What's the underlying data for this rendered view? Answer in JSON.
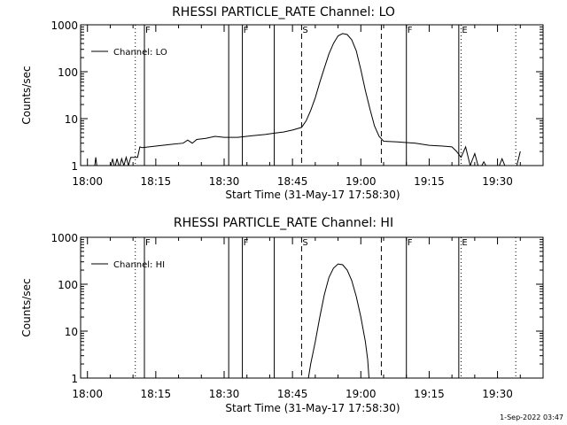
{
  "chart_data": [
    {
      "type": "line",
      "title": "RHESSI PARTICLE_RATE Channel: LO",
      "xlabel": "Start Time (31-May-17 17:58:30)",
      "ylabel": "Counts/sec",
      "yscale": "log",
      "ylim": [
        1,
        1000
      ],
      "xlim": [
        "17:58:30",
        "19:40:00"
      ],
      "x_ticks": [
        "18:00",
        "18:15",
        "18:30",
        "18:45",
        "19:00",
        "19:15",
        "19:30"
      ],
      "y_ticks": [
        "1",
        "10",
        "100",
        "1000"
      ],
      "grid": false,
      "legend_position": "top-left",
      "series": [
        {
          "name": "Channel: LO",
          "points": [
            [
              "18:00:00",
              0.8
            ],
            [
              "18:01:30",
              0.8
            ],
            [
              "18:01:50",
              1.5
            ],
            [
              "18:02:10",
              0.8
            ],
            [
              "18:05:00",
              0.8
            ],
            [
              "18:05:30",
              1.4
            ],
            [
              "18:06:00",
              0.9
            ],
            [
              "18:06:30",
              1.4
            ],
            [
              "18:07:00",
              0.9
            ],
            [
              "18:07:30",
              1.4
            ],
            [
              "18:08:00",
              1.0
            ],
            [
              "18:08:30",
              1.5
            ],
            [
              "18:09:00",
              1.0
            ],
            [
              "18:09:30",
              1.5
            ],
            [
              "18:10:00",
              1.5
            ],
            [
              "18:11:00",
              1.5
            ],
            [
              "18:11:30",
              2.5
            ],
            [
              "18:12:00",
              2.4
            ],
            [
              "18:15:00",
              2.6
            ],
            [
              "18:18:00",
              2.8
            ],
            [
              "18:21:00",
              3.0
            ],
            [
              "18:22:00",
              3.5
            ],
            [
              "18:23:00",
              3.0
            ],
            [
              "18:24:00",
              3.6
            ],
            [
              "18:26:00",
              3.8
            ],
            [
              "18:28:00",
              4.2
            ],
            [
              "18:30:00",
              4.0
            ],
            [
              "18:33:00",
              4.0
            ],
            [
              "18:36:00",
              4.3
            ],
            [
              "18:39:00",
              4.6
            ],
            [
              "18:41:00",
              4.9
            ],
            [
              "18:43:00",
              5.2
            ],
            [
              "18:45:00",
              5.7
            ],
            [
              "18:47:00",
              6.5
            ],
            [
              "18:48:00",
              9.0
            ],
            [
              "18:49:00",
              15
            ],
            [
              "18:50:00",
              28
            ],
            [
              "18:51:00",
              60
            ],
            [
              "18:52:00",
              120
            ],
            [
              "18:53:00",
              240
            ],
            [
              "18:54:00",
              400
            ],
            [
              "18:55:00",
              580
            ],
            [
              "18:56:00",
              650
            ],
            [
              "18:57:00",
              620
            ],
            [
              "18:58:00",
              480
            ],
            [
              "18:59:00",
              280
            ],
            [
              "19:00:00",
              110
            ],
            [
              "19:01:00",
              40
            ],
            [
              "19:02:00",
              16
            ],
            [
              "19:03:00",
              7
            ],
            [
              "19:04:00",
              4.2
            ],
            [
              "19:05:00",
              3.3
            ],
            [
              "19:08:00",
              3.2
            ],
            [
              "19:12:00",
              3.0
            ],
            [
              "19:15:00",
              2.7
            ],
            [
              "19:18:00",
              2.6
            ],
            [
              "19:20:00",
              2.5
            ],
            [
              "19:21:00",
              2.0
            ],
            [
              "19:22:00",
              1.5
            ],
            [
              "19:23:00",
              2.5
            ],
            [
              "19:24:00",
              1.0
            ],
            [
              "19:25:00",
              1.8
            ],
            [
              "19:26:00",
              0.8
            ],
            [
              "19:27:00",
              1.2
            ],
            [
              "19:28:00",
              0.8
            ],
            [
              "19:30:00",
              0.8
            ],
            [
              "19:31:00",
              1.4
            ],
            [
              "19:32:00",
              0.8
            ],
            [
              "19:34:00",
              0.8
            ],
            [
              "19:35:00",
              2.0
            ]
          ]
        }
      ],
      "vlines": [
        {
          "x": "18:10:30",
          "style": "dotted",
          "label": ""
        },
        {
          "x": "18:12:30",
          "style": "solid",
          "label": "F"
        },
        {
          "x": "18:31:00",
          "style": "solid",
          "label": ""
        },
        {
          "x": "18:34:00",
          "style": "solid",
          "label": "F"
        },
        {
          "x": "18:41:00",
          "style": "solid",
          "label": ""
        },
        {
          "x": "18:47:00",
          "style": "dashed",
          "label": "S"
        },
        {
          "x": "19:04:30",
          "style": "dashed",
          "label": ""
        },
        {
          "x": "19:10:00",
          "style": "solid",
          "label": "F"
        },
        {
          "x": "19:21:30",
          "style": "solid",
          "label": ""
        },
        {
          "x": "19:22:00",
          "style": "dotted",
          "label": "E"
        },
        {
          "x": "19:34:00",
          "style": "dotted",
          "label": ""
        }
      ]
    },
    {
      "type": "line",
      "title": "RHESSI PARTICLE_RATE Channel: HI",
      "xlabel": "Start Time (31-May-17 17:58:30)",
      "ylabel": "Counts/sec",
      "yscale": "log",
      "ylim": [
        1,
        1000
      ],
      "xlim": [
        "17:58:30",
        "19:40:00"
      ],
      "x_ticks": [
        "18:00",
        "18:15",
        "18:30",
        "18:45",
        "19:00",
        "19:15",
        "19:30"
      ],
      "y_ticks": [
        "1",
        "10",
        "100",
        "1000"
      ],
      "grid": false,
      "legend_position": "top-left",
      "series": [
        {
          "name": "Channel: HI",
          "points": [
            [
              "18:48:00",
              0.5
            ],
            [
              "18:48:30",
              1.0
            ],
            [
              "18:49:00",
              2.0
            ],
            [
              "18:50:00",
              6
            ],
            [
              "18:51:00",
              20
            ],
            [
              "18:52:00",
              60
            ],
            [
              "18:53:00",
              140
            ],
            [
              "18:54:00",
              220
            ],
            [
              "18:55:00",
              270
            ],
            [
              "18:56:00",
              260
            ],
            [
              "18:57:00",
              200
            ],
            [
              "18:58:00",
              120
            ],
            [
              "18:59:00",
              55
            ],
            [
              "19:00:00",
              20
            ],
            [
              "19:01:00",
              6
            ],
            [
              "19:01:30",
              2.5
            ],
            [
              "19:02:00",
              0.5
            ]
          ]
        }
      ],
      "vlines": [
        {
          "x": "18:10:30",
          "style": "dotted",
          "label": ""
        },
        {
          "x": "18:12:30",
          "style": "solid",
          "label": "F"
        },
        {
          "x": "18:31:00",
          "style": "solid",
          "label": ""
        },
        {
          "x": "18:34:00",
          "style": "solid",
          "label": "F"
        },
        {
          "x": "18:41:00",
          "style": "solid",
          "label": ""
        },
        {
          "x": "18:47:00",
          "style": "dashed",
          "label": "S"
        },
        {
          "x": "19:04:30",
          "style": "dashed",
          "label": ""
        },
        {
          "x": "19:10:00",
          "style": "solid",
          "label": "F"
        },
        {
          "x": "19:21:30",
          "style": "solid",
          "label": ""
        },
        {
          "x": "19:22:00",
          "style": "dotted",
          "label": "E"
        },
        {
          "x": "19:34:00",
          "style": "dotted",
          "label": ""
        }
      ]
    }
  ],
  "footer": "1-Sep-2022 03:47",
  "colors": {
    "background": "#ffffff",
    "foreground": "#000000"
  }
}
